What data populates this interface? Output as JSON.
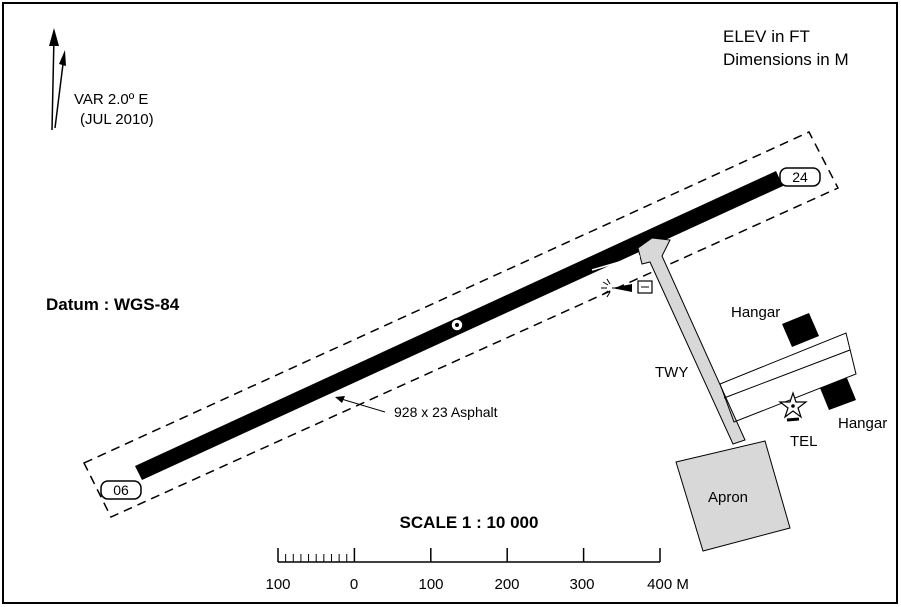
{
  "header": {
    "elevation_note": "ELEV in FT",
    "dimension_note": "Dimensions in M"
  },
  "north": {
    "variation": "VAR 2.0º E",
    "variation_date": "(JUL 2010)"
  },
  "datum": "Datum :  WGS-84",
  "runway": {
    "threshold_west": "06",
    "threshold_east": "24",
    "dimensions": "928 x 23 Asphalt"
  },
  "facilities": {
    "taxiway": "TWY",
    "apron": "Apron",
    "hangar_north": "Hangar",
    "hangar_east": "Hangar",
    "telephone": "TEL"
  },
  "scale": {
    "title": "SCALE 1 : 10 000",
    "ticks": [
      "100",
      "0",
      "100",
      "200",
      "300",
      "400 M"
    ]
  },
  "colors": {
    "ink": "#000000",
    "fill_grey": "#d8d8d8",
    "paper": "#ffffff"
  }
}
